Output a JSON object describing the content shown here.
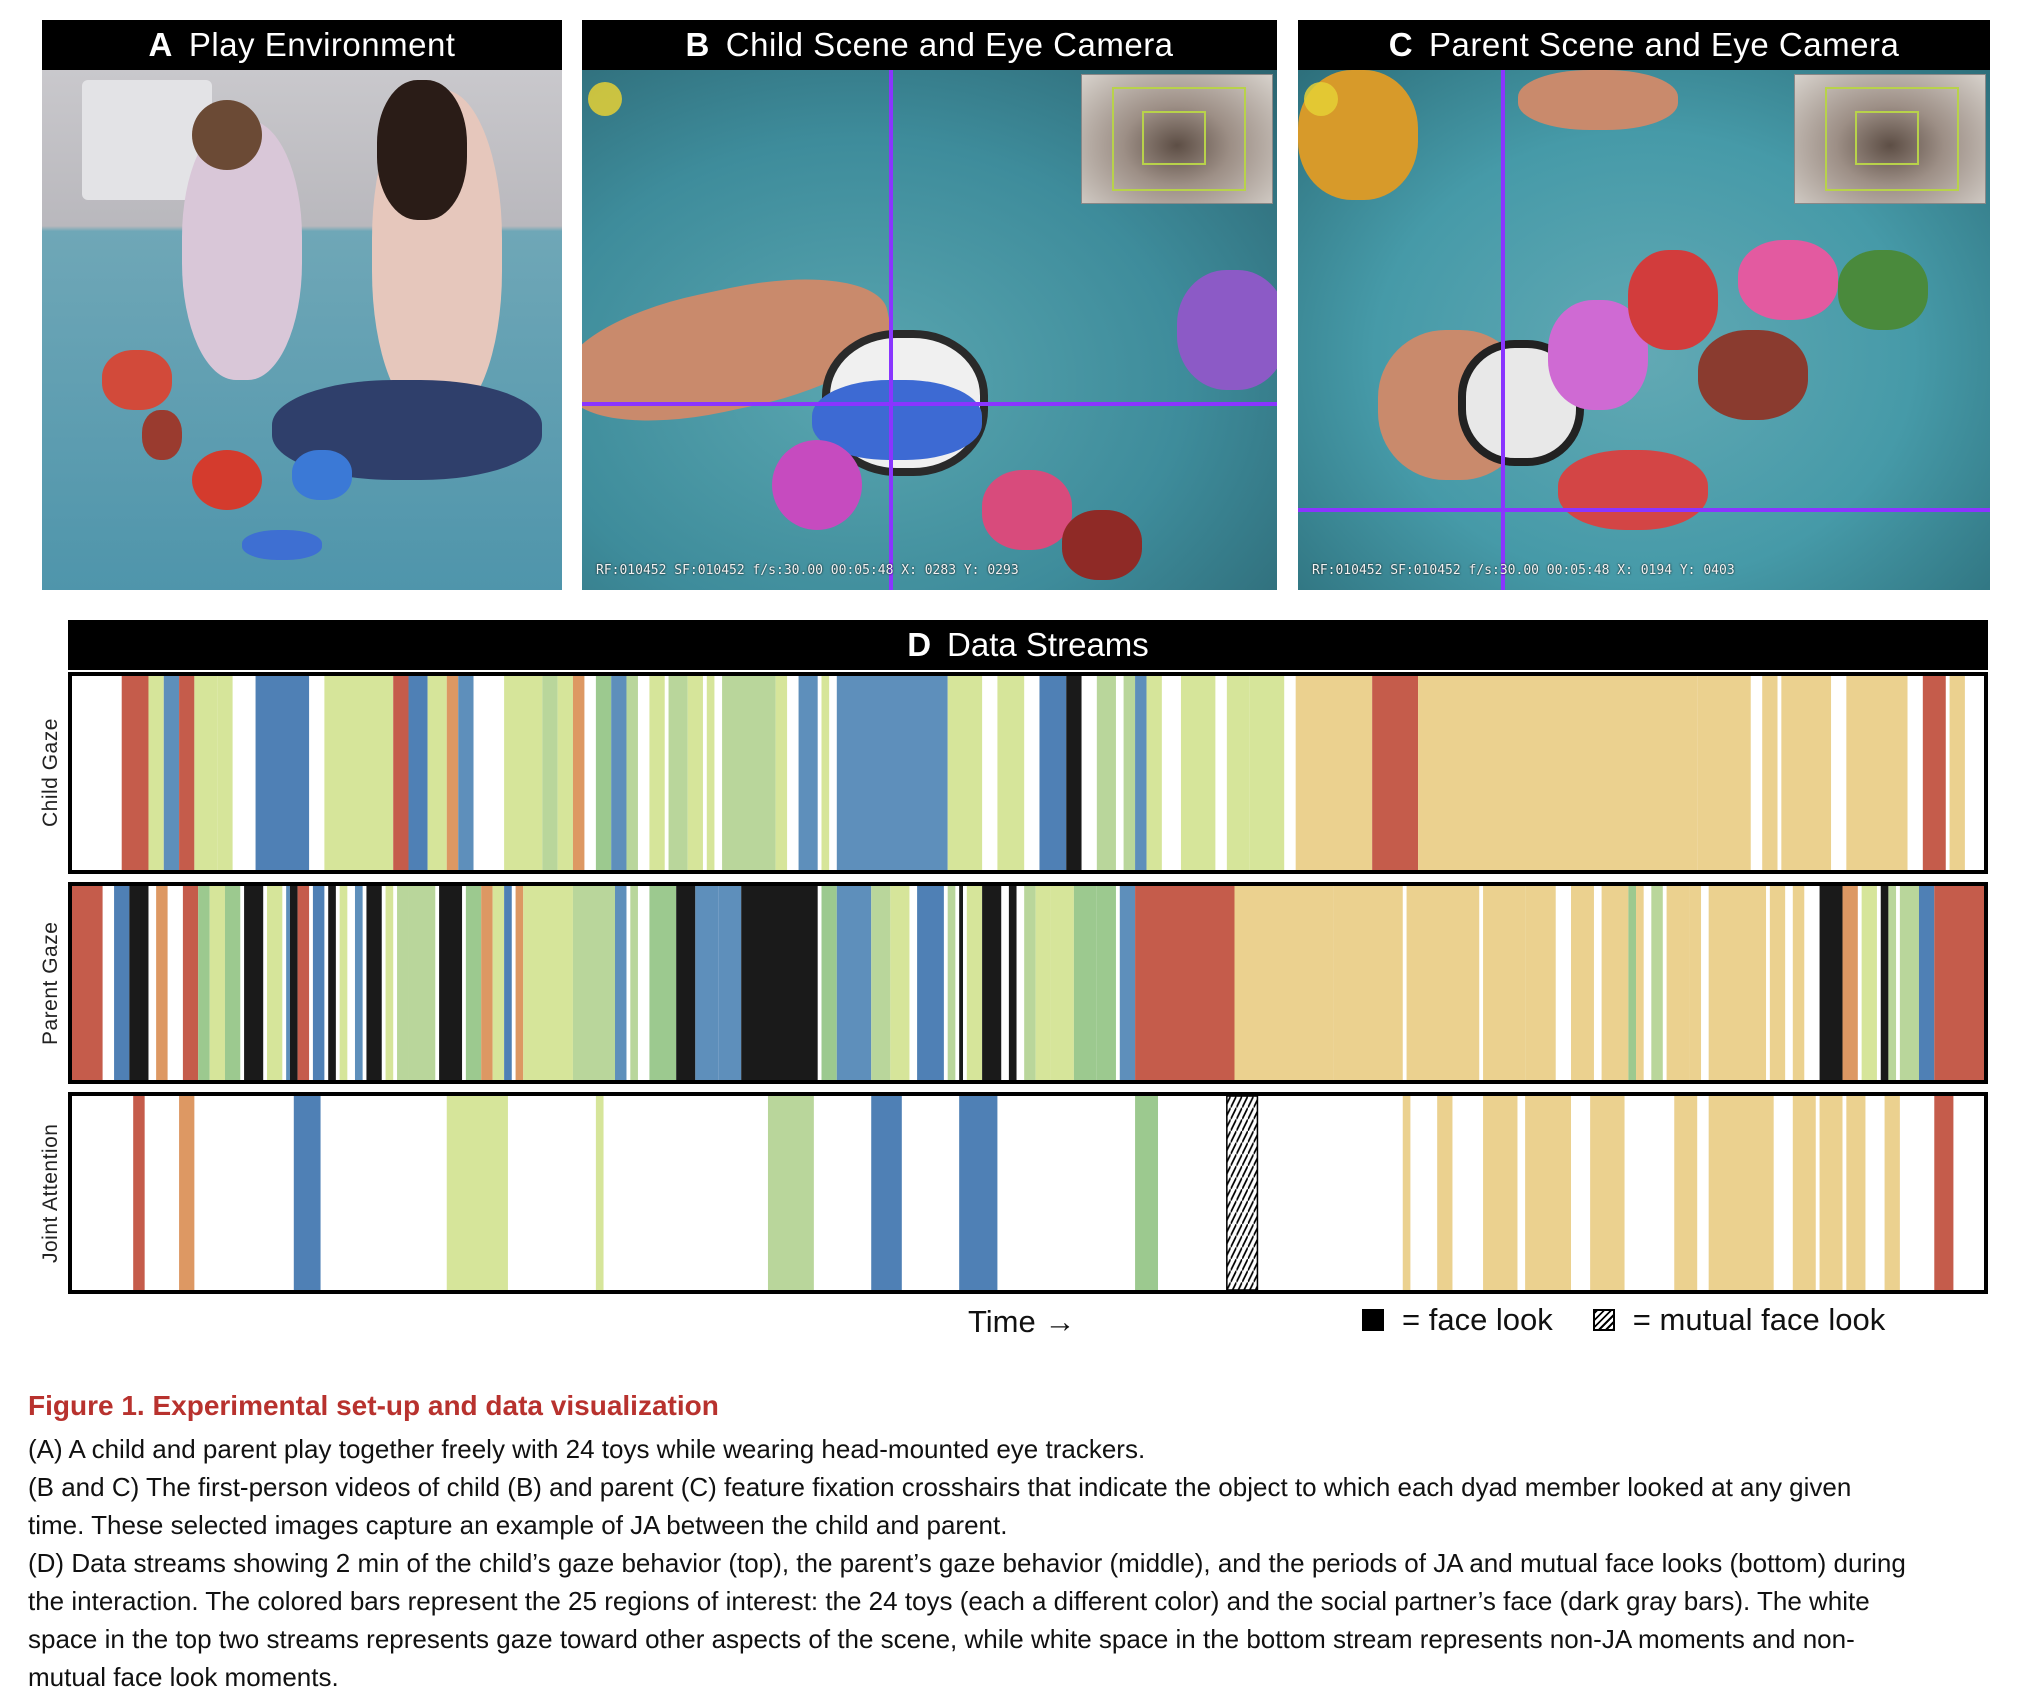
{
  "panels": {
    "a": {
      "letter": "A",
      "title": "Play Environment"
    },
    "b": {
      "letter": "B",
      "title": "Child Scene and Eye Camera",
      "overlay": "RF:010452 SF:010452 f/s:30.00 00:05:48 X: 0283 Y: 0293"
    },
    "c": {
      "letter": "C",
      "title": "Parent Scene and Eye Camera",
      "overlay": "RF:010452 SF:010452 f/s:30.00 00:05:48 X: 0194 Y: 0403"
    },
    "d": {
      "letter": "D",
      "title": "Data Streams"
    }
  },
  "streams": {
    "child_label": "Child Gaze",
    "parent_label": "Parent Gaze",
    "joint_label": "Joint Attention"
  },
  "axis": {
    "time": "Time →"
  },
  "legend": {
    "face": "= face look",
    "mutual": "= mutual face look"
  },
  "colors": {
    "r": "#c55c4b",
    "o": "#dd9863",
    "b": "#4f80b5",
    "l": "#d6e59a",
    "g": "#9cc98f",
    "y": "#ebd18f",
    "t": "#5e8fbb",
    "k": "#1a1a1a",
    "m": "#b9d69b",
    "d": "#8ab9c9"
  },
  "chart_data": {
    "type": "timeline",
    "x_extent": [
      0,
      1000
    ],
    "child_gaze": [
      [
        26,
        40,
        "r"
      ],
      [
        40,
        48,
        "l"
      ],
      [
        48,
        56,
        "t"
      ],
      [
        56,
        64,
        "r"
      ],
      [
        64,
        76,
        "l"
      ],
      [
        76,
        84,
        "l"
      ],
      [
        96,
        124,
        "b"
      ],
      [
        132,
        168,
        "l"
      ],
      [
        168,
        176,
        "r"
      ],
      [
        176,
        186,
        "b"
      ],
      [
        186,
        196,
        "l"
      ],
      [
        196,
        202,
        "o"
      ],
      [
        202,
        210,
        "t"
      ],
      [
        226,
        246,
        "l"
      ],
      [
        246,
        254,
        "m"
      ],
      [
        254,
        262,
        "l"
      ],
      [
        262,
        268,
        "o"
      ],
      [
        274,
        282,
        "g"
      ],
      [
        282,
        290,
        "t"
      ],
      [
        290,
        296,
        "m"
      ],
      [
        302,
        310,
        "l"
      ],
      [
        312,
        322,
        "m"
      ],
      [
        322,
        330,
        "l"
      ],
      [
        332,
        336,
        "l"
      ],
      [
        340,
        368,
        "m"
      ],
      [
        368,
        374,
        "l"
      ],
      [
        380,
        390,
        "t"
      ],
      [
        392,
        396,
        "l"
      ],
      [
        400,
        458,
        "t"
      ],
      [
        458,
        476,
        "l"
      ],
      [
        484,
        498,
        "l"
      ],
      [
        506,
        520,
        "b"
      ],
      [
        520,
        528,
        "k"
      ],
      [
        536,
        546,
        "m"
      ],
      [
        550,
        556,
        "m"
      ],
      [
        556,
        562,
        "t"
      ],
      [
        562,
        570,
        "l"
      ],
      [
        580,
        598,
        "l"
      ],
      [
        604,
        616,
        "l"
      ],
      [
        616,
        634,
        "l"
      ],
      [
        640,
        680,
        "y"
      ],
      [
        680,
        704,
        "r"
      ],
      [
        704,
        850,
        "y"
      ],
      [
        850,
        878,
        "y"
      ],
      [
        884,
        892,
        "y"
      ],
      [
        894,
        920,
        "y"
      ],
      [
        928,
        960,
        "y"
      ],
      [
        968,
        980,
        "r"
      ],
      [
        982,
        990,
        "y"
      ]
    ],
    "parent_gaze": [
      [
        0,
        16,
        "r"
      ],
      [
        22,
        30,
        "b"
      ],
      [
        30,
        40,
        "k"
      ],
      [
        44,
        50,
        "o"
      ],
      [
        58,
        66,
        "r"
      ],
      [
        66,
        72,
        "g"
      ],
      [
        72,
        80,
        "l"
      ],
      [
        80,
        88,
        "g"
      ],
      [
        90,
        100,
        "k"
      ],
      [
        102,
        110,
        "l"
      ],
      [
        112,
        114,
        "t"
      ],
      [
        114,
        118,
        "k"
      ],
      [
        118,
        124,
        "r"
      ],
      [
        126,
        132,
        "b"
      ],
      [
        134,
        138,
        "k"
      ],
      [
        140,
        144,
        "l"
      ],
      [
        148,
        152,
        "t"
      ],
      [
        154,
        162,
        "k"
      ],
      [
        164,
        168,
        "l"
      ],
      [
        170,
        176,
        "m"
      ],
      [
        176,
        190,
        "m"
      ],
      [
        192,
        204,
        "k"
      ],
      [
        206,
        214,
        "g"
      ],
      [
        214,
        220,
        "o"
      ],
      [
        220,
        226,
        "l"
      ],
      [
        226,
        230,
        "b"
      ],
      [
        232,
        236,
        "o"
      ],
      [
        236,
        262,
        "l"
      ],
      [
        262,
        284,
        "m"
      ],
      [
        284,
        290,
        "t"
      ],
      [
        292,
        296,
        "m"
      ],
      [
        302,
        316,
        "g"
      ],
      [
        316,
        326,
        "k"
      ],
      [
        326,
        338,
        "t"
      ],
      [
        338,
        350,
        "t"
      ],
      [
        350,
        358,
        "k"
      ],
      [
        358,
        390,
        "k"
      ],
      [
        392,
        400,
        "g"
      ],
      [
        400,
        418,
        "t"
      ],
      [
        418,
        428,
        "m"
      ],
      [
        428,
        438,
        "l"
      ],
      [
        442,
        456,
        "b"
      ],
      [
        458,
        462,
        "m"
      ],
      [
        464,
        466,
        "k"
      ],
      [
        468,
        476,
        "l"
      ],
      [
        476,
        486,
        "k"
      ],
      [
        490,
        494,
        "k"
      ],
      [
        498,
        504,
        "m"
      ],
      [
        504,
        512,
        "l"
      ],
      [
        512,
        524,
        "l"
      ],
      [
        524,
        536,
        "g"
      ],
      [
        536,
        546,
        "g"
      ],
      [
        548,
        556,
        "t"
      ],
      [
        556,
        608,
        "r"
      ],
      [
        608,
        660,
        "y"
      ],
      [
        660,
        696,
        "y"
      ],
      [
        698,
        716,
        "y"
      ],
      [
        716,
        736,
        "y"
      ],
      [
        738,
        760,
        "y"
      ],
      [
        760,
        776,
        "y"
      ],
      [
        784,
        796,
        "y"
      ],
      [
        800,
        814,
        "y"
      ],
      [
        814,
        818,
        "g"
      ],
      [
        818,
        822,
        "y"
      ],
      [
        826,
        832,
        "m"
      ],
      [
        834,
        846,
        "y"
      ],
      [
        846,
        852,
        "y"
      ],
      [
        856,
        886,
        "y"
      ],
      [
        888,
        896,
        "y"
      ],
      [
        900,
        906,
        "y"
      ],
      [
        914,
        926,
        "k"
      ],
      [
        926,
        934,
        "o"
      ],
      [
        936,
        944,
        "l"
      ],
      [
        946,
        950,
        "k"
      ],
      [
        950,
        954,
        "m"
      ],
      [
        956,
        966,
        "m"
      ],
      [
        966,
        974,
        "b"
      ],
      [
        974,
        1000,
        "r"
      ]
    ],
    "joint_attention": [
      [
        32,
        38,
        "r"
      ],
      [
        56,
        64,
        "o"
      ],
      [
        116,
        130,
        "b"
      ],
      [
        196,
        228,
        "l"
      ],
      [
        274,
        278,
        "l"
      ],
      [
        364,
        388,
        "m"
      ],
      [
        418,
        434,
        "b"
      ],
      [
        464,
        484,
        "b"
      ],
      [
        556,
        568,
        "g"
      ],
      [
        696,
        700,
        "y"
      ],
      [
        714,
        722,
        "y"
      ],
      [
        738,
        756,
        "y"
      ],
      [
        760,
        784,
        "y"
      ],
      [
        794,
        812,
        "y"
      ],
      [
        838,
        850,
        "y"
      ],
      [
        856,
        890,
        "y"
      ],
      [
        900,
        912,
        "y"
      ],
      [
        914,
        926,
        "y"
      ],
      [
        928,
        938,
        "y"
      ],
      [
        948,
        956,
        "y"
      ],
      [
        974,
        984,
        "r"
      ]
    ],
    "mutual_face_look": [
      [
        604,
        620
      ]
    ]
  },
  "caption": {
    "title": "Figure 1.  Experimental set-up and data visualization",
    "a": "(A) A child and parent play together freely with 24 toys while wearing head-mounted eye trackers.",
    "bc_1": "(B and C) The first-person videos of child (B) and parent (C) feature fixation crosshairs that indicate the object to which each dyad member looked at any given",
    "bc_2": "time. These selected images capture an example of JA between the child and parent.",
    "d_1": "(D) Data streams showing 2 min of the child’s gaze behavior (top), the parent’s gaze behavior (middle), and the periods of JA and mutual face looks (bottom) during",
    "d_2": "the interaction. The colored bars represent the 25 regions of interest: the 24 toys (each a different color) and the social partner’s face (dark gray bars). The white",
    "d_3": "space in the top two streams represents gaze toward other aspects of the scene, while white space in the bottom stream represents non-JA moments and non-",
    "d_4": "mutual face look moments."
  }
}
